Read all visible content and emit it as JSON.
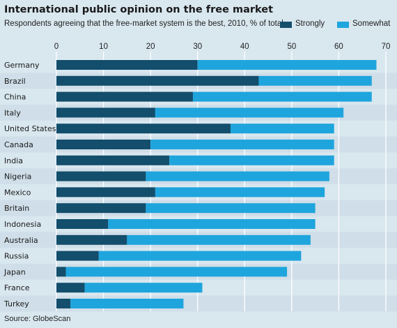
{
  "colors": {
    "strongly": "#134e6c",
    "somewhat": "#1fa5dd",
    "background": "#d9e7ef",
    "grid": "#ffffff"
  },
  "source": "Source: GlobeScan",
  "chart_data": {
    "type": "bar",
    "orientation": "horizontal",
    "stacked": true,
    "title": "International public opinion on the free market",
    "subtitle": "Respondents agreeing that the free-market system is the best, 2010, % of total",
    "categories": [
      "Germany",
      "Brazil",
      "China",
      "Italy",
      "United States",
      "Canada",
      "India",
      "Nigeria",
      "Mexico",
      "Britain",
      "Indonesia",
      "Australia",
      "Russia",
      "Japan",
      "France",
      "Turkey"
    ],
    "series": [
      {
        "name": "Strongly",
        "color": "#134e6c",
        "values": [
          30,
          43,
          29,
          21,
          37,
          20,
          24,
          19,
          21,
          19,
          11,
          15,
          9,
          2,
          6,
          3
        ]
      },
      {
        "name": "Somewhat",
        "color": "#1fa5dd",
        "values": [
          38,
          24,
          38,
          40,
          22,
          39,
          35,
          39,
          36,
          36,
          44,
          39,
          43,
          47,
          25,
          24
        ]
      }
    ],
    "xlim": [
      0,
      70
    ],
    "xticks": [
      0,
      10,
      20,
      30,
      40,
      50,
      60,
      70
    ],
    "grid": true,
    "axis_position": "top",
    "legend_position": "top-right"
  }
}
